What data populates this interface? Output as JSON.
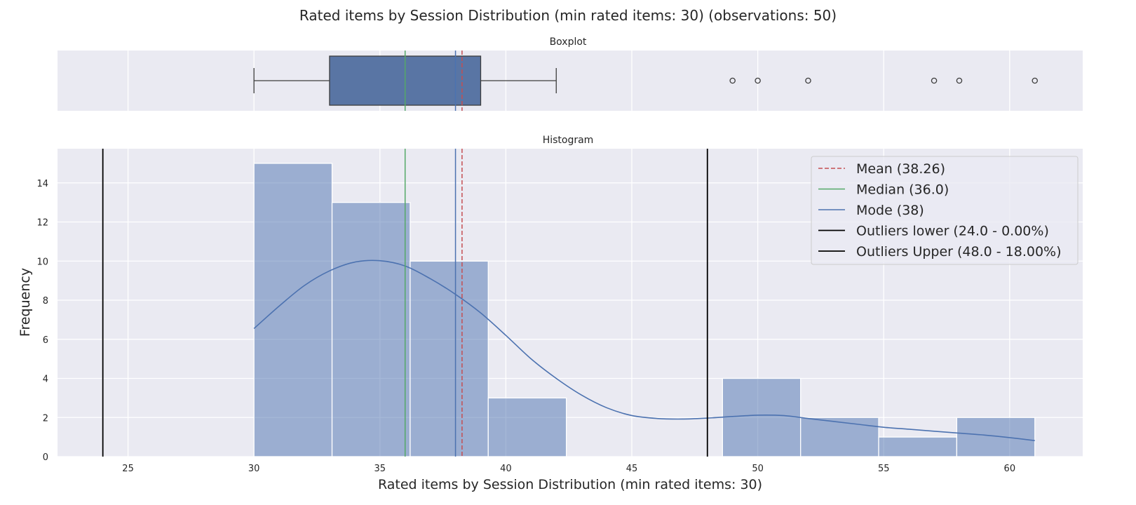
{
  "chart_data": {
    "type": "bar",
    "title": "Rated items by Session Distribution (min rated items: 30) (observations: 50)",
    "subplots": {
      "boxplot_title": "Boxplot",
      "histogram_title": "Histogram"
    },
    "xlabel": "Rated items by Session Distribution (min rated items: 30)",
    "ylabel": "Frequency",
    "xlim": [
      22.2,
      62.9
    ],
    "ylim": [
      0,
      15.75
    ],
    "x_ticks": [
      25,
      30,
      35,
      40,
      45,
      50,
      55,
      60
    ],
    "y_ticks": [
      0,
      2,
      4,
      6,
      8,
      10,
      12,
      14
    ],
    "grid": true,
    "histogram": {
      "bins": [
        {
          "x0": 30.0,
          "x1": 33.1,
          "count": 15
        },
        {
          "x0": 33.1,
          "x1": 36.2,
          "count": 13
        },
        {
          "x0": 36.2,
          "x1": 39.3,
          "count": 10
        },
        {
          "x0": 39.3,
          "x1": 42.4,
          "count": 3
        },
        {
          "x0": 42.4,
          "x1": 45.5,
          "count": 0
        },
        {
          "x0": 45.5,
          "x1": 48.6,
          "count": 0
        },
        {
          "x0": 48.6,
          "x1": 51.7,
          "count": 4
        },
        {
          "x0": 51.7,
          "x1": 54.8,
          "count": 2
        },
        {
          "x0": 54.8,
          "x1": 57.9,
          "count": 1
        },
        {
          "x0": 57.9,
          "x1": 61.0,
          "count": 2
        }
      ],
      "bar_color": "#4c72b0",
      "bar_opacity": 0.5
    },
    "kde": {
      "x": [
        30,
        31,
        32,
        33,
        34,
        35,
        36,
        37,
        38,
        39,
        40,
        41,
        42,
        43,
        44,
        45,
        46,
        47,
        48,
        49,
        50,
        51,
        52,
        53,
        54,
        55,
        56,
        57,
        58,
        59,
        60,
        61
      ],
      "y": [
        6.55,
        7.7,
        8.75,
        9.5,
        9.95,
        10.02,
        9.75,
        9.1,
        8.3,
        7.35,
        6.2,
        5.0,
        4.0,
        3.15,
        2.5,
        2.1,
        1.95,
        1.92,
        1.97,
        2.05,
        2.12,
        2.1,
        1.95,
        1.8,
        1.65,
        1.5,
        1.4,
        1.3,
        1.2,
        1.1,
        0.97,
        0.82
      ],
      "color": "#4c72b0"
    },
    "boxplot": {
      "whisker_low": 30,
      "q1": 33,
      "median": 36,
      "q3": 39,
      "whisker_high": 42,
      "fliers": [
        49,
        50,
        52,
        57,
        58,
        61
      ],
      "box_color": "#5975a4"
    },
    "reference_lines": [
      {
        "name": "Mean (38.26)",
        "value": 38.26,
        "color": "#c44e52",
        "style": "dashed"
      },
      {
        "name": "Median (36.0)",
        "value": 36.0,
        "color": "#55a868",
        "style": "solid"
      },
      {
        "name": "Mode (38)",
        "value": 38,
        "color": "#4c72b0",
        "style": "solid"
      },
      {
        "name": "Outliers lower (24.0 - 0.00%)",
        "value": 24.0,
        "color": "#000000",
        "style": "solid"
      },
      {
        "name": "Outliers Upper (48.0 - 18.00%)",
        "value": 48.0,
        "color": "#000000",
        "style": "solid"
      }
    ],
    "legend_position": "top-right",
    "colors": {
      "panel_bg": "#eaeaf2",
      "grid": "#ffffff",
      "text": "#262626"
    }
  }
}
